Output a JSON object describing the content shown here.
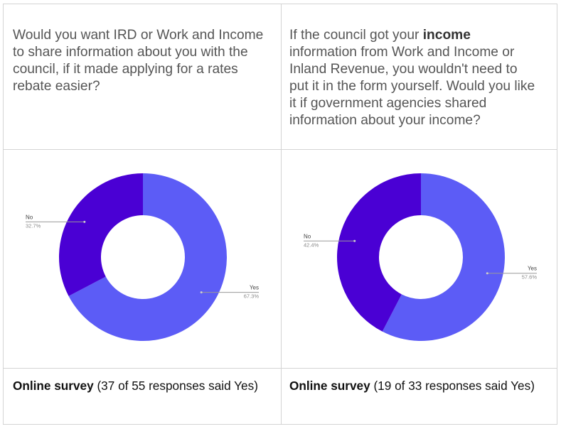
{
  "questions": {
    "left": {
      "text": "Would you want IRD or Work and Income to share information about you with the council, if it made applying for a rates rebate easier?"
    },
    "right": {
      "before": "If the council got your ",
      "bold": "income",
      "after": " information from Work and Income or Inland Revenue, you wouldn't need to put it in the form yourself. Would you like it if government agencies shared information about your income?"
    }
  },
  "footers": {
    "left": {
      "bold": "Online survey",
      "rest": " (37 of 55 responses said Yes)"
    },
    "right": {
      "bold": "Online survey",
      "rest": " (19 of 33 responses said Yes)"
    }
  },
  "chart_data": [
    {
      "type": "pie",
      "donut": true,
      "slices": [
        {
          "label": "Yes",
          "value": 67.3,
          "display": "67.3%",
          "color": "#5c5cf6"
        },
        {
          "label": "No",
          "value": 32.7,
          "display": "32.7%",
          "color": "#4a00d4"
        }
      ]
    },
    {
      "type": "pie",
      "donut": true,
      "slices": [
        {
          "label": "Yes",
          "value": 57.6,
          "display": "57.6%",
          "color": "#5c5cf6"
        },
        {
          "label": "No",
          "value": 42.4,
          "display": "42.4%",
          "color": "#4a00d4"
        }
      ]
    }
  ]
}
